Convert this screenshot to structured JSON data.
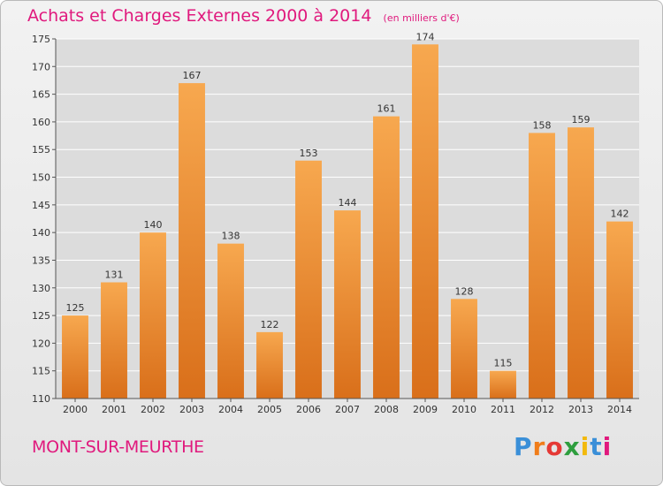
{
  "header": {
    "title": "Achats et Charges Externes 2000 à 2014",
    "unit": "(en milliers d'€)"
  },
  "footer": {
    "commune": "MONT-SUR-MEURTHE",
    "logo": {
      "letters": [
        "P",
        "r",
        "o",
        "x",
        "i",
        "t",
        "i"
      ],
      "colors": [
        "#3a8fd8",
        "#f07d1a",
        "#e53935",
        "#2e9e3e",
        "#f2b90c",
        "#3a8fd8",
        "#e0197d"
      ]
    }
  },
  "colors": {
    "bar_light": "#f7a84f",
    "bar_dark": "#d96f1a",
    "title": "#e0197d",
    "grid": "#ffffff"
  },
  "chart_data": {
    "type": "bar",
    "categories": [
      "2000",
      "2001",
      "2002",
      "2003",
      "2004",
      "2005",
      "2006",
      "2007",
      "2008",
      "2009",
      "2010",
      "2011",
      "2012",
      "2013",
      "2014"
    ],
    "values": [
      125,
      131,
      140,
      167,
      138,
      122,
      153,
      144,
      161,
      174,
      128,
      115,
      158,
      159,
      142
    ],
    "ylim": [
      110,
      175
    ],
    "yticks": [
      110,
      115,
      120,
      125,
      130,
      135,
      140,
      145,
      150,
      155,
      160,
      165,
      170,
      175
    ],
    "grid": true,
    "data_labels": true
  }
}
